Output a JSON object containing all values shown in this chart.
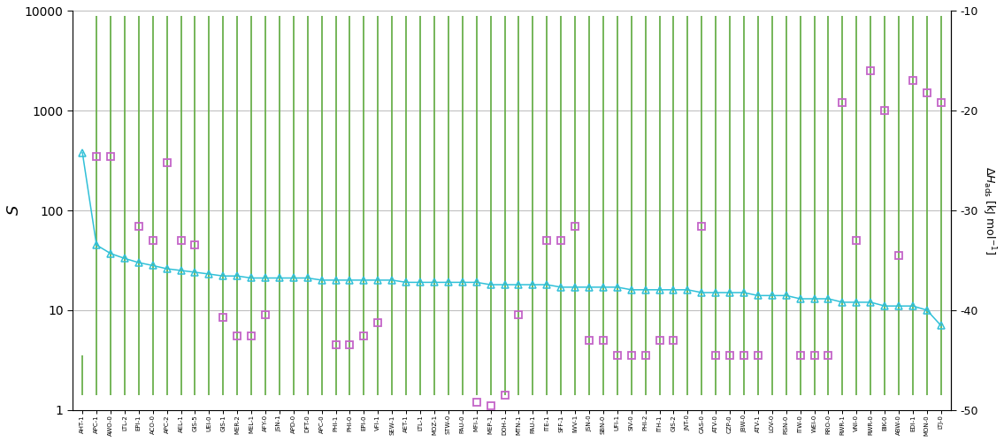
{
  "categories": [
    "AHT-1",
    "APC-1",
    "AWO-0",
    "LTL-2",
    "EPI-1",
    "ACO-0",
    "APC-2",
    "AEL-1",
    "GIS-5",
    "UEI-0",
    "GIS-1",
    "MER-2",
    "MEL-1",
    "AFY-0",
    "JSN-1",
    "APD-0",
    "DFT-0",
    "APC-0",
    "PHI-1",
    "PHI-0",
    "EPI-0",
    "VFI-1",
    "SEW-1",
    "AET-1",
    "LTL-1",
    "MOZ-1",
    "STW-0",
    "PAU-0",
    "MFI-1",
    "MEP-1",
    "DOH-1",
    "MTN-1",
    "PAU-1",
    "ITE-1",
    "SFF-1",
    "IWV-1",
    "JSN-0",
    "SBN-0",
    "UFI-1",
    "SIV-0",
    "PHI-2",
    "ITH-1",
    "GIS-2",
    "JNT-0",
    "CAS-0",
    "ATV-0",
    "CZP-0",
    "JBW-0",
    "ATV-1",
    "LOV-0",
    "RSN-0",
    "ITW-0",
    "WEI-0",
    "RRO-0",
    "RWR-1",
    "VNI-0",
    "RWR-0",
    "BIK-0",
    "ABW-0",
    "EDI-1",
    "MON-0",
    "LTJ-0"
  ],
  "bar_tops": [
    3.5,
    9000,
    9000,
    9000,
    9000,
    9000,
    9000,
    9000,
    9000,
    9000,
    9000,
    9000,
    9000,
    9000,
    9000,
    9000,
    9000,
    9000,
    9000,
    9000,
    9000,
    9000,
    9000,
    9000,
    9000,
    9000,
    9000,
    9000,
    9000,
    9000,
    9000,
    9000,
    9000,
    9000,
    9000,
    9000,
    9000,
    9000,
    9000,
    9000,
    9000,
    9000,
    9000,
    9000,
    9000,
    9000,
    9000,
    9000,
    9000,
    9000,
    9000,
    9000,
    9000,
    9000,
    9000,
    9000,
    9000,
    9000,
    9000,
    9000,
    9000,
    9000
  ],
  "bar_bottoms": [
    1.4,
    1.4,
    1.4,
    1.4,
    1.4,
    1.4,
    1.4,
    1.4,
    1.4,
    1.4,
    1.4,
    1.4,
    1.4,
    1.4,
    1.4,
    1.4,
    1.4,
    1.4,
    1.4,
    1.4,
    1.4,
    1.4,
    1.4,
    1.4,
    1.4,
    1.4,
    1.4,
    1.4,
    1.4,
    1.4,
    1.4,
    1.4,
    1.4,
    1.4,
    1.4,
    1.4,
    1.4,
    1.4,
    1.4,
    1.4,
    1.4,
    1.4,
    1.4,
    1.4,
    1.4,
    1.4,
    1.4,
    1.4,
    1.4,
    1.4,
    1.4,
    1.4,
    1.4,
    1.4,
    1.4,
    1.4,
    1.4,
    1.4,
    1.4,
    1.4,
    1.4,
    1.4
  ],
  "square_S": [
    null,
    350,
    350,
    null,
    70,
    50,
    300,
    50,
    45,
    null,
    8.5,
    5.5,
    5.5,
    9.0,
    null,
    null,
    null,
    null,
    4.5,
    4.5,
    5.5,
    7.5,
    null,
    null,
    null,
    null,
    null,
    null,
    1.2,
    1.1,
    1.4,
    9.0,
    null,
    50,
    50,
    70,
    5.0,
    5.0,
    3.5,
    3.5,
    3.5,
    5.0,
    5.0,
    null,
    70,
    3.5,
    3.5,
    3.5,
    3.5,
    null,
    null,
    3.5,
    3.5,
    3.5,
    1200,
    50,
    2500,
    1000,
    35,
    2000,
    1500,
    1200
  ],
  "triangle_S": [
    380,
    45,
    37,
    33,
    30,
    28,
    26,
    25,
    24,
    23,
    22,
    22,
    21,
    21,
    21,
    21,
    21,
    20,
    20,
    20,
    20,
    20,
    20,
    19,
    19,
    19,
    19,
    19,
    19,
    18,
    18,
    18,
    18,
    18,
    17,
    17,
    17,
    17,
    17,
    16,
    16,
    16,
    16,
    16,
    15,
    15,
    15,
    15,
    14,
    14,
    14,
    13,
    13,
    13,
    12,
    12,
    12,
    11,
    11,
    11,
    10,
    7
  ],
  "bar_color": "#6ab04c",
  "square_color": "#c464c8",
  "triangle_color": "#30c0d8",
  "ylim": [
    1,
    10000
  ],
  "right_ylim": [
    -50,
    -10
  ],
  "right_yticks": [
    -10,
    -20,
    -30,
    -40,
    -50
  ],
  "left_yticks": [
    1,
    10,
    100,
    1000,
    10000
  ],
  "grid_color": "#b0b0b0",
  "figsize": [
    11.35,
    5.0
  ],
  "dpi": 100
}
